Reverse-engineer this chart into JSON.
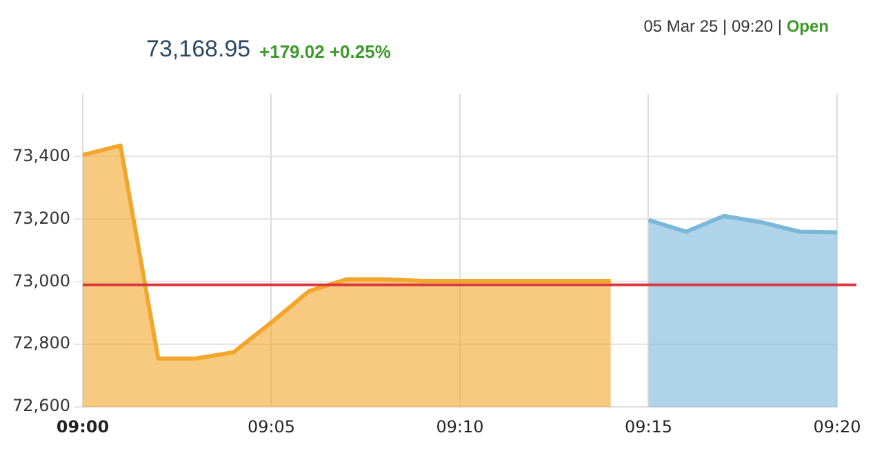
{
  "chart_data": {
    "type": "area",
    "title": "73,168.95",
    "subtitle": "+179.02 +0.25%",
    "annotations": [
      "05 Mar 25 | 09:20 |",
      "Open"
    ],
    "categories": [
      "09:00",
      null,
      null,
      null,
      null,
      "09:05",
      null,
      null,
      null,
      null,
      "09:10",
      null,
      null,
      null,
      null,
      "09:15",
      null,
      null,
      null,
      null,
      "09:20"
    ],
    "series": [
      {
        "color": "#f2a62b",
        "values": [
          73405,
          73435,
          72755,
          72755,
          72775,
          72870,
          72970,
          73008,
          73008,
          73003,
          73003,
          73003,
          73003,
          73003,
          73003,
          null,
          null,
          null,
          null,
          null,
          null
        ]
      },
      {
        "color": "#7ab8da",
        "values": [
          null,
          null,
          null,
          null,
          null,
          null,
          null,
          null,
          null,
          null,
          null,
          null,
          null,
          null,
          null,
          73197,
          73160,
          73210,
          73190,
          73160,
          73158
        ]
      }
    ],
    "ylim": [
      72600,
      73600
    ],
    "yticks": [
      {
        "value": 72600,
        "label": "72,600"
      },
      {
        "value": 72800,
        "label": "72,800"
      },
      {
        "value": 73000,
        "label": "73,000"
      },
      {
        "value": 73200,
        "label": "73,200"
      },
      {
        "value": 73400,
        "label": "73,400"
      }
    ],
    "ref_lines": [
      {
        "axis": "y",
        "value": 72990,
        "color": "#d9363e"
      }
    ],
    "grid": true,
    "legend": false
  }
}
